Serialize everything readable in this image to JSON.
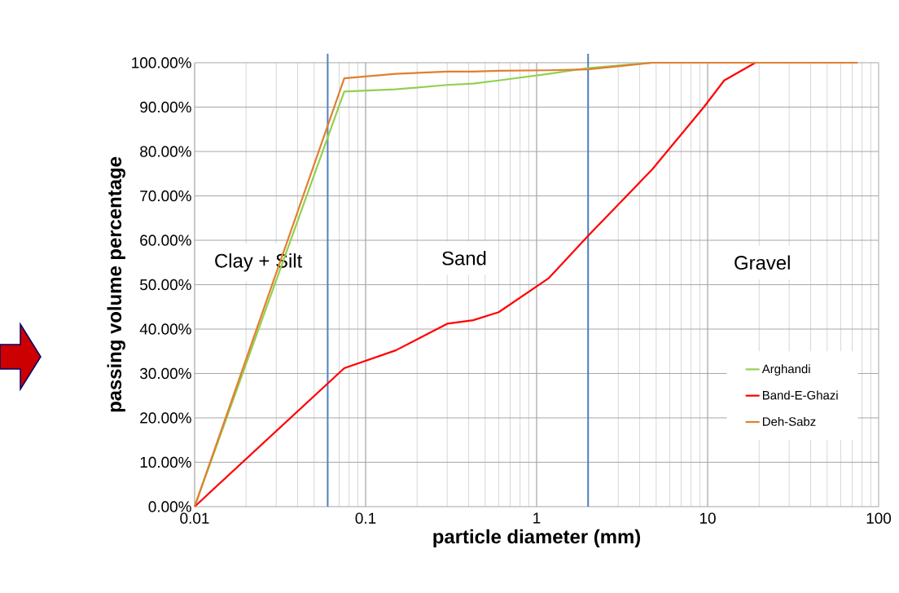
{
  "chart_data": {
    "type": "line",
    "xlabel": "particle diameter (mm)",
    "ylabel": "passing volume percentage",
    "log": "x",
    "grid": true,
    "legend": "bottom right",
    "marker": "none",
    "line_style": "solid",
    "xlim": [
      0.01,
      100
    ],
    "xticks": [
      0.01,
      0.1,
      1,
      10,
      100
    ],
    "ylim": [
      0,
      100
    ],
    "yticks": [
      {
        "value": 0,
        "label": "0.00%"
      },
      {
        "value": 10,
        "label": "10.00%"
      },
      {
        "value": 20,
        "label": "20.00%"
      },
      {
        "value": 30,
        "label": "30.00%"
      },
      {
        "value": 40,
        "label": "40.00%"
      },
      {
        "value": 50,
        "label": "50.00%"
      },
      {
        "value": 60,
        "label": "60.00%"
      },
      {
        "value": 70,
        "label": "70.00%"
      },
      {
        "value": 80,
        "label": "80.00%"
      },
      {
        "value": 90,
        "label": "90.00%"
      },
      {
        "value": 100,
        "label": "100.00%"
      }
    ],
    "series": [
      {
        "name": "Arghandi",
        "color": "#92d050",
        "x": [
          0.01,
          0.075,
          0.15,
          0.3,
          0.425,
          0.6,
          1.18,
          2,
          4.75,
          75
        ],
        "values": [
          0,
          93.5,
          94,
          95,
          95.3,
          96,
          97.5,
          98.8,
          100,
          100
        ]
      },
      {
        "name": "Band-E-Ghazi",
        "color": "#ff0000",
        "x": [
          0.01,
          0.075,
          0.15,
          0.3,
          0.425,
          0.6,
          1.18,
          2,
          4.75,
          9.5,
          12.5,
          19,
          75
        ],
        "values": [
          0,
          31.2,
          35.2,
          41.2,
          42,
          43.8,
          51.5,
          61,
          76,
          90,
          96,
          100,
          100
        ]
      },
      {
        "name": "Deh-Sabz",
        "color": "#e07f30",
        "x": [
          0.01,
          0.075,
          0.15,
          0.3,
          0.425,
          0.6,
          1.18,
          2,
          4.75,
          75
        ],
        "values": [
          0,
          96.5,
          97.5,
          98,
          98,
          98.2,
          98.3,
          98.5,
          100,
          100
        ]
      }
    ],
    "ref_lines": [
      {
        "axis": "x",
        "value": 0.06,
        "color": "#4f81bd"
      },
      {
        "axis": "x",
        "value": 2,
        "color": "#4f81bd"
      }
    ],
    "annotations": [
      "Clay + Silt",
      "Sand",
      "Gravel"
    ]
  }
}
